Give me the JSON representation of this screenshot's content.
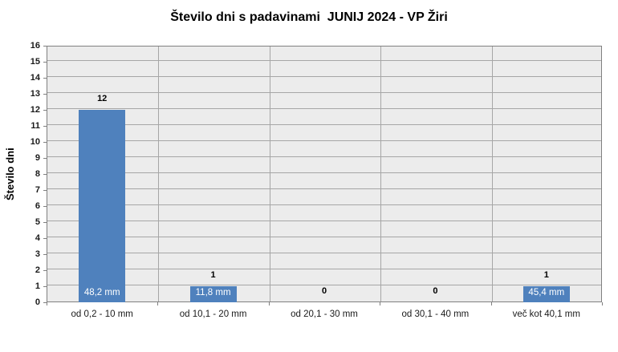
{
  "title": "Število dni s padavinami  JUNIJ 2024 - VP Žiri",
  "chart_data": {
    "type": "bar",
    "title": "Število dni s padavinami  JUNIJ 2024 - VP Žiri",
    "xlabel": "",
    "ylabel": "Število dni",
    "categories": [
      "od 0,2 - 10 mm",
      "od 10,1 - 20 mm",
      "od 20,1 - 30 mm",
      "od 30,1 - 40 mm",
      "več kot 40,1 mm"
    ],
    "values": [
      12,
      1,
      0,
      0,
      1
    ],
    "bar_value_labels": [
      "12",
      "1",
      "0",
      "0",
      "1"
    ],
    "bar_inner_labels": [
      "48,2 mm",
      "11,8 mm",
      null,
      null,
      "45,4 mm"
    ],
    "ylim": [
      0,
      16
    ],
    "ytick_step": 1,
    "grid": true,
    "legend_position": "none",
    "colors": {
      "bar": "#4F81BD",
      "plot_background": "#ECECEC",
      "gridline": "#A6A6A6",
      "plot_border": "#808080",
      "inner_label_text": "#FFFFFF",
      "page_background": "#FFFFFF"
    }
  }
}
